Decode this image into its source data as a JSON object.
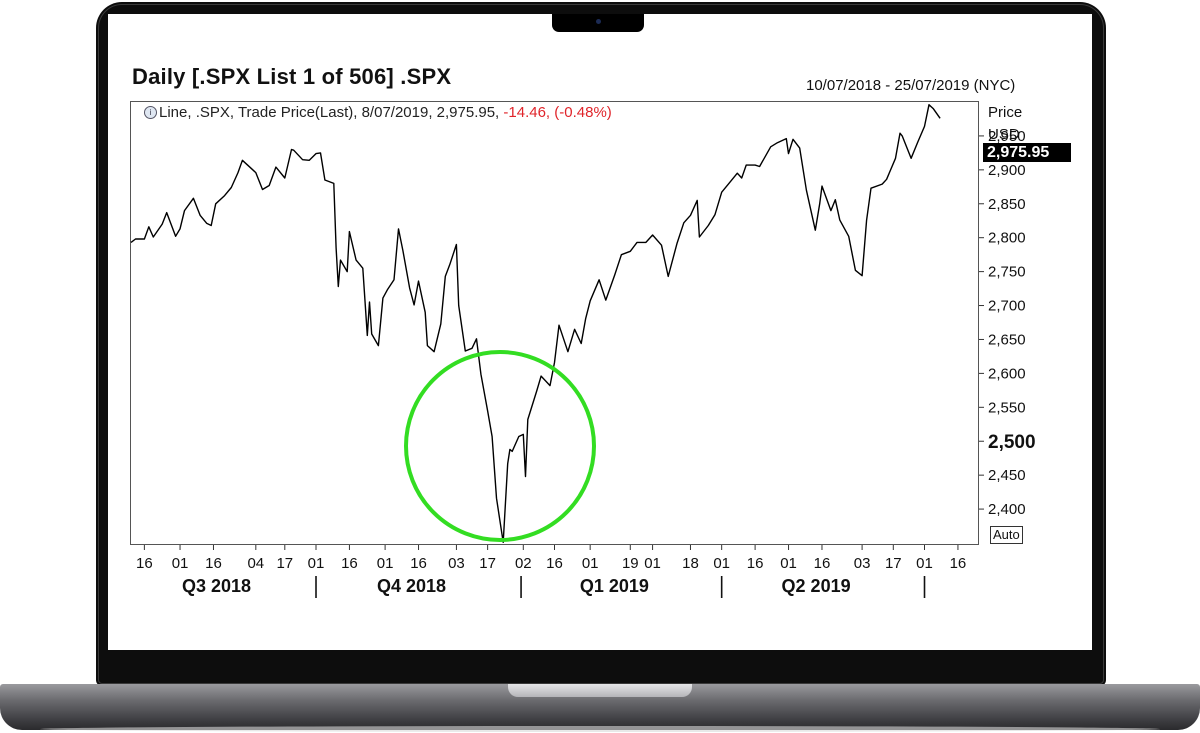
{
  "header": {
    "title": "Daily [.SPX List 1 of 506] .SPX",
    "date_range": "10/07/2018 - 25/07/2019 (NYC)"
  },
  "legend": {
    "icon": "info-circle-icon",
    "text": "Line, .SPX, Trade Price(Last), 8/07/2019, 2,975.95,",
    "change": "-14.46, (-0.48%)",
    "change_color": "#e0242a"
  },
  "axis_panel": {
    "price_label": "Price",
    "currency_label": "USD",
    "last_value": "2,975.95",
    "auto_button": "Auto"
  },
  "annotation": {
    "shape": "circle",
    "color": "#33dd22"
  },
  "chart_data": {
    "type": "line",
    "x_range": [
      "2018-07-10",
      "2019-07-25"
    ],
    "ylim": [
      2350,
      3000
    ],
    "y_ticks": [
      {
        "value": 2950,
        "label": "2,950"
      },
      {
        "value": 2900,
        "label": "2,900"
      },
      {
        "value": 2850,
        "label": "2,850"
      },
      {
        "value": 2800,
        "label": "2,800"
      },
      {
        "value": 2750,
        "label": "2,750"
      },
      {
        "value": 2700,
        "label": "2,700"
      },
      {
        "value": 2650,
        "label": "2,650"
      },
      {
        "value": 2600,
        "label": "2,600"
      },
      {
        "value": 2550,
        "label": "2,550"
      },
      {
        "value": 2500,
        "label": "2,500",
        "major": true
      },
      {
        "value": 2450,
        "label": "2,450"
      },
      {
        "value": 2400,
        "label": "2,400"
      }
    ],
    "x_ticks": [
      {
        "date": "2018-07-16",
        "label": "16"
      },
      {
        "date": "2018-08-01",
        "label": "01"
      },
      {
        "date": "2018-08-16",
        "label": "16"
      },
      {
        "date": "2018-09-04",
        "label": "04"
      },
      {
        "date": "2018-09-17",
        "label": "17"
      },
      {
        "date": "2018-10-01",
        "label": "01"
      },
      {
        "date": "2018-10-16",
        "label": "16"
      },
      {
        "date": "2018-11-01",
        "label": "01"
      },
      {
        "date": "2018-11-16",
        "label": "16"
      },
      {
        "date": "2018-12-03",
        "label": "03"
      },
      {
        "date": "2018-12-17",
        "label": "17"
      },
      {
        "date": "2019-01-02",
        "label": "02"
      },
      {
        "date": "2019-01-16",
        "label": "16"
      },
      {
        "date": "2019-02-01",
        "label": "01"
      },
      {
        "date": "2019-02-19",
        "label": "19"
      },
      {
        "date": "2019-03-01",
        "label": "01"
      },
      {
        "date": "2019-03-18",
        "label": "18"
      },
      {
        "date": "2019-04-01",
        "label": "01"
      },
      {
        "date": "2019-04-16",
        "label": "16"
      },
      {
        "date": "2019-05-01",
        "label": "01"
      },
      {
        "date": "2019-05-16",
        "label": "16"
      },
      {
        "date": "2019-06-03",
        "label": "03"
      },
      {
        "date": "2019-06-17",
        "label": "17"
      },
      {
        "date": "2019-07-01",
        "label": "01"
      },
      {
        "date": "2019-07-16",
        "label": "16"
      }
    ],
    "quarters": [
      {
        "label": "Q3 2018",
        "start": "2018-07-10",
        "end": "2018-10-01"
      },
      {
        "label": "Q4 2018",
        "start": "2018-10-01",
        "end": "2019-01-01"
      },
      {
        "label": "Q1 2019",
        "start": "2019-01-01",
        "end": "2019-04-01"
      },
      {
        "label": "Q2 2019",
        "start": "2019-04-01",
        "end": "2019-07-01"
      }
    ],
    "series": [
      {
        "color": "#000000",
        "points": [
          [
            "2018-07-10",
            2793
          ],
          [
            "2018-07-12",
            2798
          ],
          [
            "2018-07-16",
            2798
          ],
          [
            "2018-07-18",
            2816
          ],
          [
            "2018-07-20",
            2801
          ],
          [
            "2018-07-24",
            2820
          ],
          [
            "2018-07-26",
            2837
          ],
          [
            "2018-07-30",
            2802
          ],
          [
            "2018-08-01",
            2813
          ],
          [
            "2018-08-03",
            2840
          ],
          [
            "2018-08-07",
            2858
          ],
          [
            "2018-08-10",
            2833
          ],
          [
            "2018-08-13",
            2821
          ],
          [
            "2018-08-15",
            2818
          ],
          [
            "2018-08-17",
            2850
          ],
          [
            "2018-08-21",
            2862
          ],
          [
            "2018-08-24",
            2874
          ],
          [
            "2018-08-27",
            2896
          ],
          [
            "2018-08-29",
            2914
          ],
          [
            "2018-09-04",
            2896
          ],
          [
            "2018-09-07",
            2871
          ],
          [
            "2018-09-10",
            2877
          ],
          [
            "2018-09-13",
            2904
          ],
          [
            "2018-09-17",
            2888
          ],
          [
            "2018-09-20",
            2930
          ],
          [
            "2018-09-21",
            2929
          ],
          [
            "2018-09-25",
            2915
          ],
          [
            "2018-09-28",
            2914
          ],
          [
            "2018-10-01",
            2924
          ],
          [
            "2018-10-03",
            2925
          ],
          [
            "2018-10-05",
            2885
          ],
          [
            "2018-10-09",
            2880
          ],
          [
            "2018-10-10",
            2785
          ],
          [
            "2018-10-11",
            2728
          ],
          [
            "2018-10-12",
            2767
          ],
          [
            "2018-10-15",
            2750
          ],
          [
            "2018-10-16",
            2809
          ],
          [
            "2018-10-19",
            2767
          ],
          [
            "2018-10-22",
            2755
          ],
          [
            "2018-10-24",
            2656
          ],
          [
            "2018-10-25",
            2705
          ],
          [
            "2018-10-26",
            2658
          ],
          [
            "2018-10-29",
            2641
          ],
          [
            "2018-10-31",
            2711
          ],
          [
            "2018-11-02",
            2723
          ],
          [
            "2018-11-05",
            2738
          ],
          [
            "2018-11-07",
            2813
          ],
          [
            "2018-11-09",
            2781
          ],
          [
            "2018-11-12",
            2726
          ],
          [
            "2018-11-14",
            2701
          ],
          [
            "2018-11-16",
            2736
          ],
          [
            "2018-11-19",
            2690
          ],
          [
            "2018-11-20",
            2641
          ],
          [
            "2018-11-23",
            2632
          ],
          [
            "2018-11-26",
            2673
          ],
          [
            "2018-11-28",
            2743
          ],
          [
            "2018-11-30",
            2760
          ],
          [
            "2018-12-03",
            2790
          ],
          [
            "2018-12-04",
            2700
          ],
          [
            "2018-12-07",
            2633
          ],
          [
            "2018-12-10",
            2637
          ],
          [
            "2018-12-12",
            2651
          ],
          [
            "2018-12-14",
            2599
          ],
          [
            "2018-12-17",
            2545
          ],
          [
            "2018-12-19",
            2507
          ],
          [
            "2018-12-21",
            2416
          ],
          [
            "2018-12-24",
            2351
          ],
          [
            "2018-12-26",
            2467
          ],
          [
            "2018-12-27",
            2488
          ],
          [
            "2018-12-28",
            2485
          ],
          [
            "2018-12-31",
            2507
          ],
          [
            "2019-01-02",
            2510
          ],
          [
            "2019-01-03",
            2448
          ],
          [
            "2019-01-04",
            2532
          ],
          [
            "2019-01-08",
            2574
          ],
          [
            "2019-01-10",
            2596
          ],
          [
            "2019-01-14",
            2582
          ],
          [
            "2019-01-16",
            2616
          ],
          [
            "2019-01-18",
            2671
          ],
          [
            "2019-01-22",
            2632
          ],
          [
            "2019-01-25",
            2665
          ],
          [
            "2019-01-28",
            2644
          ],
          [
            "2019-01-30",
            2681
          ],
          [
            "2019-02-01",
            2707
          ],
          [
            "2019-02-05",
            2738
          ],
          [
            "2019-02-08",
            2708
          ],
          [
            "2019-02-12",
            2745
          ],
          [
            "2019-02-15",
            2775
          ],
          [
            "2019-02-19",
            2780
          ],
          [
            "2019-02-22",
            2793
          ],
          [
            "2019-02-26",
            2793
          ],
          [
            "2019-03-01",
            2804
          ],
          [
            "2019-03-05",
            2789
          ],
          [
            "2019-03-08",
            2743
          ],
          [
            "2019-03-12",
            2792
          ],
          [
            "2019-03-15",
            2822
          ],
          [
            "2019-03-18",
            2833
          ],
          [
            "2019-03-21",
            2855
          ],
          [
            "2019-03-22",
            2801
          ],
          [
            "2019-03-26",
            2818
          ],
          [
            "2019-03-29",
            2834
          ],
          [
            "2019-04-01",
            2867
          ],
          [
            "2019-04-04",
            2879
          ],
          [
            "2019-04-08",
            2895
          ],
          [
            "2019-04-10",
            2888
          ],
          [
            "2019-04-12",
            2907
          ],
          [
            "2019-04-16",
            2907
          ],
          [
            "2019-04-18",
            2905
          ],
          [
            "2019-04-23",
            2934
          ],
          [
            "2019-04-26",
            2940
          ],
          [
            "2019-04-30",
            2946
          ],
          [
            "2019-05-01",
            2924
          ],
          [
            "2019-05-03",
            2945
          ],
          [
            "2019-05-06",
            2932
          ],
          [
            "2019-05-09",
            2870
          ],
          [
            "2019-05-13",
            2811
          ],
          [
            "2019-05-15",
            2850
          ],
          [
            "2019-05-16",
            2876
          ],
          [
            "2019-05-20",
            2840
          ],
          [
            "2019-05-22",
            2856
          ],
          [
            "2019-05-24",
            2826
          ],
          [
            "2019-05-28",
            2802
          ],
          [
            "2019-05-31",
            2752
          ],
          [
            "2019-06-03",
            2744
          ],
          [
            "2019-06-05",
            2826
          ],
          [
            "2019-06-07",
            2873
          ],
          [
            "2019-06-12",
            2879
          ],
          [
            "2019-06-14",
            2886
          ],
          [
            "2019-06-18",
            2917
          ],
          [
            "2019-06-20",
            2954
          ],
          [
            "2019-06-21",
            2950
          ],
          [
            "2019-06-25",
            2917
          ],
          [
            "2019-06-28",
            2941
          ],
          [
            "2019-07-01",
            2964
          ],
          [
            "2019-07-03",
            2996
          ],
          [
            "2019-07-05",
            2990
          ],
          [
            "2019-07-08",
            2976
          ]
        ]
      }
    ]
  }
}
